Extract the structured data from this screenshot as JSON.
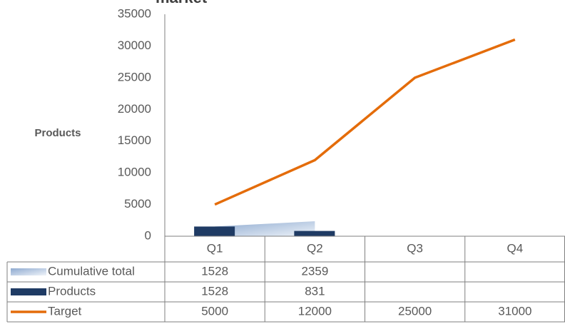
{
  "chart_data": {
    "type": "combo",
    "title": "market",
    "y_label": "Products",
    "categories": [
      "Q1",
      "Q2",
      "Q3",
      "Q4"
    ],
    "series": [
      {
        "name": "Cumulative total",
        "type": "area",
        "color": "#c5d5e8",
        "values": [
          1528,
          2359,
          null,
          null
        ]
      },
      {
        "name": "Products",
        "type": "bar",
        "color": "#1f3b64",
        "values": [
          1528,
          831,
          null,
          null
        ]
      },
      {
        "name": "Target",
        "type": "line",
        "color": "#e46c0a",
        "values": [
          5000,
          12000,
          25000,
          31000
        ]
      }
    ],
    "ylim": [
      0,
      35000
    ],
    "yticks": [
      0,
      5000,
      10000,
      15000,
      20000,
      25000,
      30000,
      35000
    ],
    "grid": false
  }
}
